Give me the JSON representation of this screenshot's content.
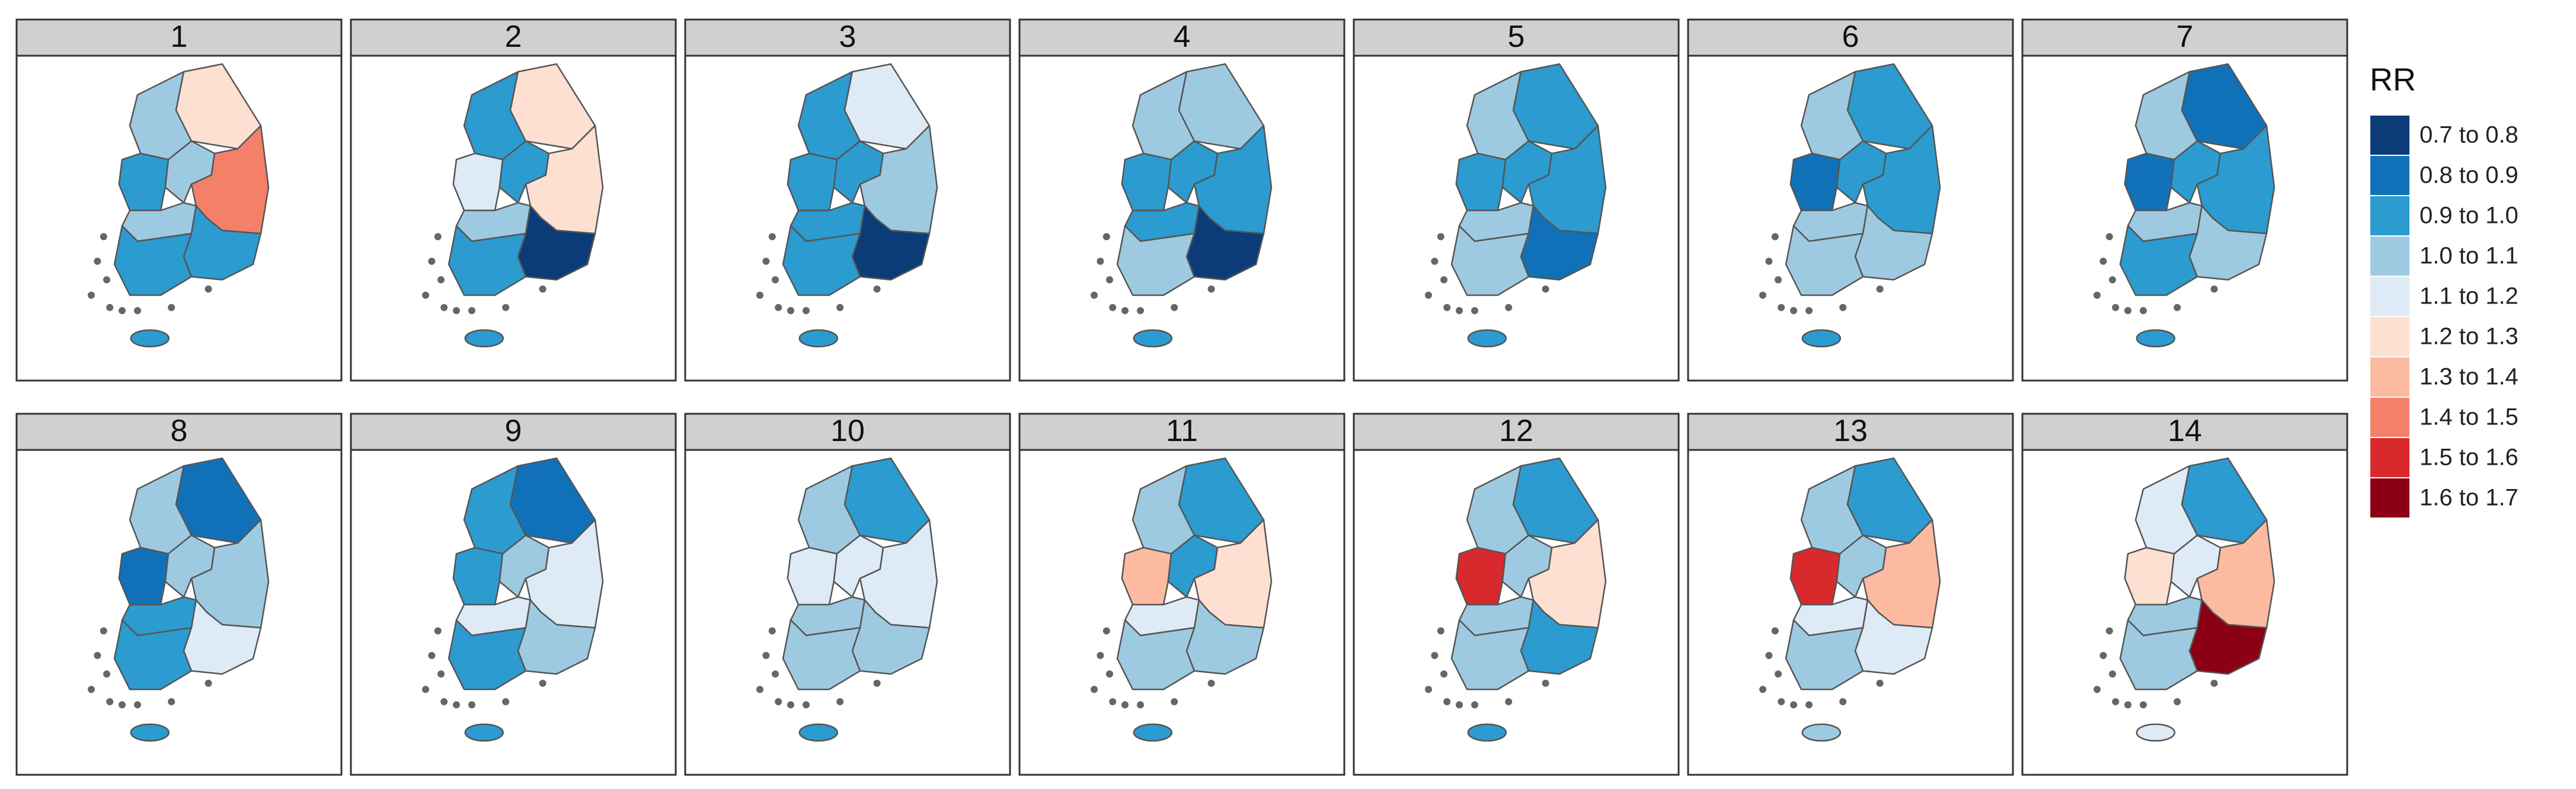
{
  "legend": {
    "title": "RR",
    "entries": [
      {
        "label": "0.7 to 0.8",
        "color": "#0b3c78"
      },
      {
        "label": "0.8 to 0.9",
        "color": "#1171b8"
      },
      {
        "label": "0.9 to 1.0",
        "color": "#2b9bd0"
      },
      {
        "label": "1.0 to 1.1",
        "color": "#9ecae1"
      },
      {
        "label": "1.1 to 1.2",
        "color": "#deebf7"
      },
      {
        "label": "1.2 to 1.3",
        "color": "#fde0d2"
      },
      {
        "label": "1.3 to 1.4",
        "color": "#fcbba1"
      },
      {
        "label": "1.4 to 1.5",
        "color": "#f4806a"
      },
      {
        "label": "1.5 to 1.6",
        "color": "#d8292d"
      },
      {
        "label": "1.6 to 1.7",
        "color": "#8b0015"
      }
    ]
  },
  "panels": [
    {
      "label": "1",
      "fills": [
        "#9ecae1",
        "#fde0d2",
        "#2b9bd0",
        "#9ecae1",
        "#f4806a",
        "#9ecae1",
        "#2b9bd0",
        "#2b9bd0",
        "#2b9bd0"
      ]
    },
    {
      "label": "2",
      "fills": [
        "#2b9bd0",
        "#fde0d2",
        "#deebf7",
        "#2b9bd0",
        "#fde0d2",
        "#9ecae1",
        "#2b9bd0",
        "#0b3c78",
        "#2b9bd0"
      ]
    },
    {
      "label": "3",
      "fills": [
        "#2b9bd0",
        "#deebf7",
        "#2b9bd0",
        "#2b9bd0",
        "#9ecae1",
        "#2b9bd0",
        "#2b9bd0",
        "#0b3c78",
        "#2b9bd0"
      ]
    },
    {
      "label": "4",
      "fills": [
        "#9ecae1",
        "#9ecae1",
        "#2b9bd0",
        "#2b9bd0",
        "#2b9bd0",
        "#2b9bd0",
        "#9ecae1",
        "#0b3c78",
        "#2b9bd0"
      ]
    },
    {
      "label": "5",
      "fills": [
        "#9ecae1",
        "#2b9bd0",
        "#2b9bd0",
        "#2b9bd0",
        "#2b9bd0",
        "#9ecae1",
        "#9ecae1",
        "#1171b8",
        "#2b9bd0"
      ]
    },
    {
      "label": "6",
      "fills": [
        "#9ecae1",
        "#2b9bd0",
        "#1171b8",
        "#2b9bd0",
        "#2b9bd0",
        "#9ecae1",
        "#9ecae1",
        "#9ecae1",
        "#2b9bd0"
      ]
    },
    {
      "label": "7",
      "fills": [
        "#9ecae1",
        "#1171b8",
        "#1171b8",
        "#2b9bd0",
        "#2b9bd0",
        "#9ecae1",
        "#2b9bd0",
        "#9ecae1",
        "#2b9bd0"
      ]
    },
    {
      "label": "8",
      "fills": [
        "#9ecae1",
        "#1171b8",
        "#1171b8",
        "#9ecae1",
        "#9ecae1",
        "#2b9bd0",
        "#2b9bd0",
        "#deebf7",
        "#2b9bd0"
      ]
    },
    {
      "label": "9",
      "fills": [
        "#2b9bd0",
        "#1171b8",
        "#2b9bd0",
        "#9ecae1",
        "#deebf7",
        "#deebf7",
        "#2b9bd0",
        "#9ecae1",
        "#2b9bd0"
      ]
    },
    {
      "label": "10",
      "fills": [
        "#9ecae1",
        "#2b9bd0",
        "#deebf7",
        "#deebf7",
        "#deebf7",
        "#9ecae1",
        "#9ecae1",
        "#9ecae1",
        "#2b9bd0"
      ]
    },
    {
      "label": "11",
      "fills": [
        "#9ecae1",
        "#2b9bd0",
        "#fcbba1",
        "#2b9bd0",
        "#fde0d2",
        "#deebf7",
        "#9ecae1",
        "#9ecae1",
        "#2b9bd0"
      ]
    },
    {
      "label": "12",
      "fills": [
        "#9ecae1",
        "#2b9bd0",
        "#d8292d",
        "#9ecae1",
        "#fde0d2",
        "#9ecae1",
        "#9ecae1",
        "#2b9bd0",
        "#2b9bd0"
      ]
    },
    {
      "label": "13",
      "fills": [
        "#9ecae1",
        "#2b9bd0",
        "#d8292d",
        "#9ecae1",
        "#fcbba1",
        "#deebf7",
        "#9ecae1",
        "#deebf7",
        "#9ecae1"
      ]
    },
    {
      "label": "14",
      "fills": [
        "#deebf7",
        "#2b9bd0",
        "#fde0d2",
        "#deebf7",
        "#fcbba1",
        "#9ecae1",
        "#9ecae1",
        "#8b0015",
        "#deebf7"
      ]
    }
  ]
}
